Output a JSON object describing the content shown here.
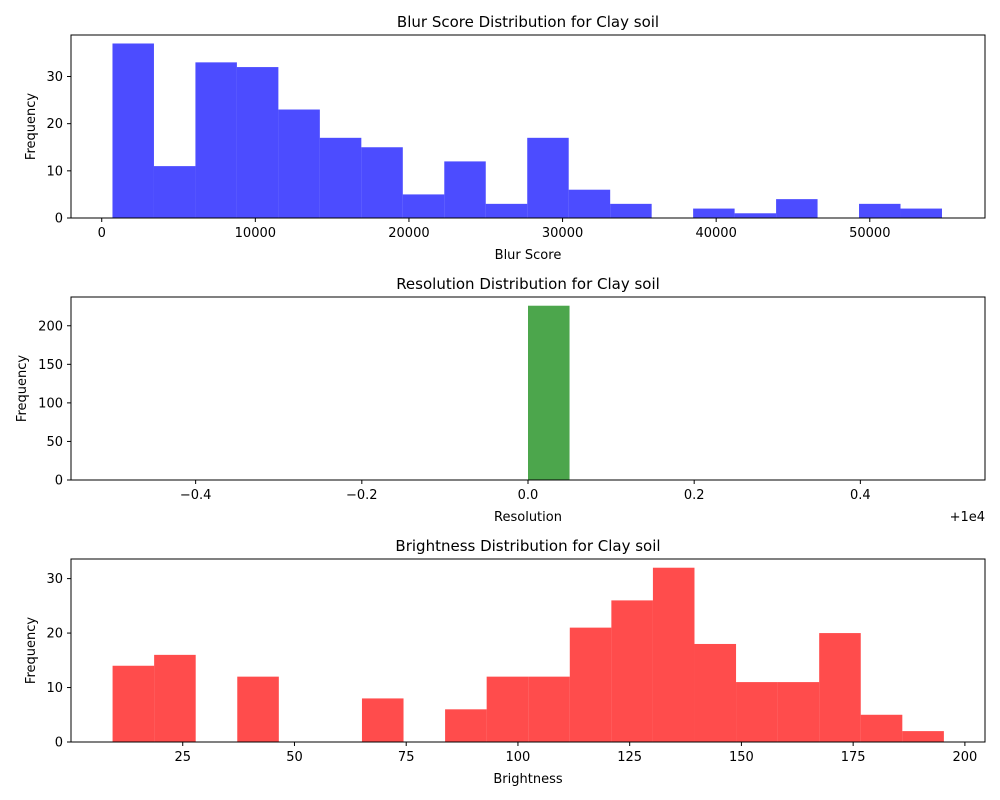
{
  "chart_data": [
    {
      "type": "bar",
      "title": "Blur Score Distribution for Clay soil",
      "xlabel": "Blur Score",
      "ylabel": "Frequency",
      "color": "#0000ff",
      "alpha": 0.7,
      "xlim": [
        -2000,
        57500
      ],
      "ylim": [
        0,
        38.8
      ],
      "x_ticks": [
        0,
        10000,
        20000,
        30000,
        40000,
        50000
      ],
      "x_tick_labels": [
        "0",
        "10000",
        "20000",
        "30000",
        "40000",
        "50000"
      ],
      "y_ticks": [
        0,
        10,
        20,
        30
      ],
      "y_tick_labels": [
        "0",
        "10",
        "20",
        "30"
      ],
      "offset_text": "",
      "bin_edges": [
        700,
        3400,
        6100,
        8800,
        11500,
        14200,
        16900,
        19600,
        22300,
        25000,
        27700,
        30400,
        33100,
        35800,
        38500,
        41200,
        43900,
        46600,
        49300,
        52000,
        54700
      ],
      "values": [
        37,
        11,
        33,
        32,
        23,
        17,
        15,
        5,
        12,
        3,
        17,
        6,
        3,
        0,
        2,
        1,
        4,
        0,
        3,
        2
      ]
    },
    {
      "type": "bar",
      "title": "Resolution Distribution for Clay soil",
      "xlabel": "Resolution",
      "ylabel": "Frequency",
      "color": "#008000",
      "alpha": 0.7,
      "xlim": [
        -0.55,
        0.55
      ],
      "ylim": [
        0,
        237.3
      ],
      "x_ticks": [
        -0.4,
        -0.2,
        0.0,
        0.2,
        0.4
      ],
      "x_tick_labels": [
        "−0.4",
        "−0.2",
        "0.0",
        "0.2",
        "0.4"
      ],
      "y_ticks": [
        0,
        50,
        100,
        150,
        200
      ],
      "y_tick_labels": [
        "0",
        "50",
        "100",
        "150",
        "200"
      ],
      "offset_text": "+1e4",
      "bin_edges": [
        0.0,
        0.05
      ],
      "values": [
        226
      ]
    },
    {
      "type": "bar",
      "title": "Brightness Distribution for Clay soil",
      "xlabel": "Brightness",
      "ylabel": "Frequency",
      "color": "#ff0000",
      "alpha": 0.7,
      "xlim": [
        0,
        204.5
      ],
      "ylim": [
        0,
        33.6
      ],
      "x_ticks": [
        25,
        50,
        75,
        100,
        125,
        150,
        175,
        200
      ],
      "x_tick_labels": [
        "25",
        "50",
        "75",
        "100",
        "125",
        "150",
        "175",
        "200"
      ],
      "y_ticks": [
        0,
        10,
        20,
        30
      ],
      "y_tick_labels": [
        "0",
        "10",
        "20",
        "30"
      ],
      "offset_text": "",
      "bin_edges": [
        9.3,
        18.6,
        27.9,
        37.2,
        46.5,
        55.8,
        65.1,
        74.4,
        83.7,
        93.0,
        102.3,
        111.6,
        120.9,
        130.2,
        139.5,
        148.8,
        158.1,
        167.4,
        176.7,
        186.0,
        195.3
      ],
      "values": [
        14,
        16,
        0,
        12,
        0,
        0,
        8,
        0,
        6,
        12,
        12,
        21,
        26,
        32,
        18,
        11,
        11,
        20,
        5,
        2
      ]
    }
  ]
}
